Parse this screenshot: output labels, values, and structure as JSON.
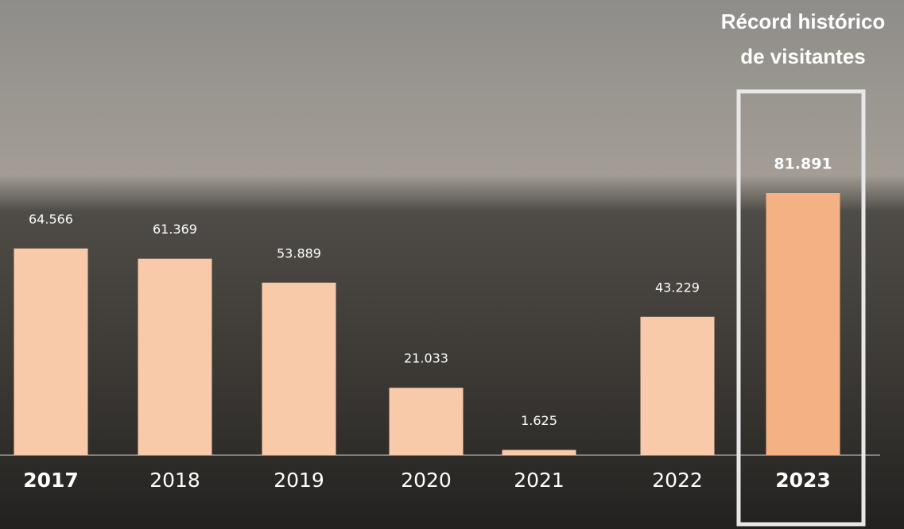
{
  "chart_data": {
    "type": "bar",
    "annotation": [
      "Récord histórico",
      "de visitantes"
    ],
    "categories": [
      "2017",
      "2018",
      "2019",
      "2020",
      "2021",
      "2022",
      "2023"
    ],
    "values": [
      64566,
      61369,
      53889,
      21033,
      1625,
      43229,
      81891
    ],
    "value_labels": [
      "64.566",
      "61.369",
      "53.889",
      "21.033",
      "1.625",
      "43.229",
      "81.891"
    ],
    "colors": [
      "#f8caa9",
      "#f8caa9",
      "#f8caa9",
      "#f8caa9",
      "#f8caa9",
      "#f8caa9",
      "#f4b183"
    ],
    "highlight": 6
  }
}
